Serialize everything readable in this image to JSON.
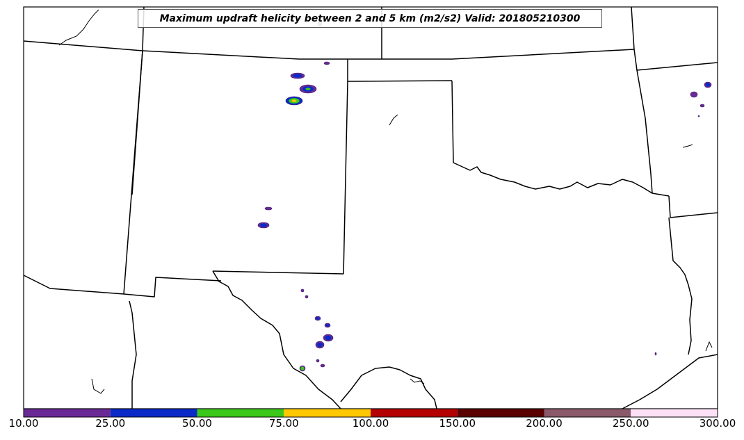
{
  "title": "Maximum updraft helicity between 2 and 5 km (m2/s2) Valid: 201805210300",
  "colorbar": {
    "ticks": [
      "10.00",
      "25.00",
      "50.00",
      "75.00",
      "100.00",
      "150.00",
      "200.00",
      "250.00",
      "300.00"
    ],
    "bins": [
      {
        "from": 10,
        "to": 25,
        "color": "#6a2a96"
      },
      {
        "from": 25,
        "to": 50,
        "color": "#0a2ac8"
      },
      {
        "from": 50,
        "to": 75,
        "color": "#3cc81a"
      },
      {
        "from": 75,
        "to": 100,
        "color": "#ffc800"
      },
      {
        "from": 100,
        "to": 150,
        "color": "#b40000"
      },
      {
        "from": 150,
        "to": 200,
        "color": "#5a0000"
      },
      {
        "from": 200,
        "to": 250,
        "color": "#8a5a6a"
      },
      {
        "from": 250,
        "to": 300,
        "color": "#fce0f6"
      }
    ]
  }
}
